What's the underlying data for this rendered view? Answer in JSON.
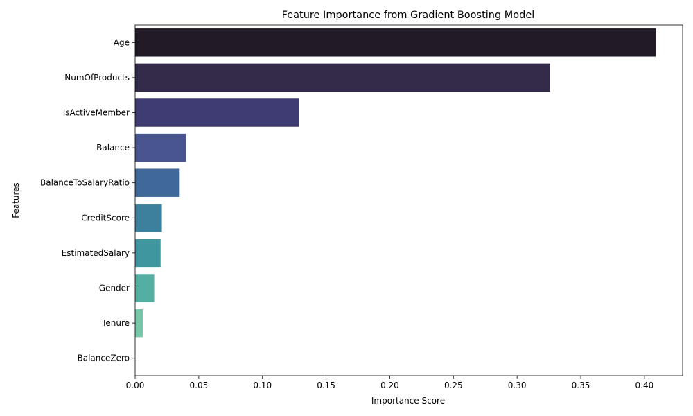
{
  "chart_data": {
    "type": "bar",
    "orientation": "horizontal",
    "title": "Feature Importance from Gradient Boosting Model",
    "xlabel": "Importance Score",
    "ylabel": "Features",
    "categories": [
      "Age",
      "NumOfProducts",
      "IsActiveMember",
      "Balance",
      "BalanceToSalaryRatio",
      "CreditScore",
      "EstimatedSalary",
      "Gender",
      "Tenure",
      "BalanceZero"
    ],
    "values": [
      0.409,
      0.326,
      0.129,
      0.04,
      0.035,
      0.021,
      0.02,
      0.015,
      0.006,
      0.0
    ],
    "colors": [
      "#231a28",
      "#342a4a",
      "#3f3b73",
      "#485590",
      "#40699a",
      "#3c809d",
      "#40969e",
      "#52afa2",
      "#74c8a8",
      "#c0e9ba"
    ],
    "xlim": [
      0,
      0.43
    ],
    "xticks": [
      "0.00",
      "0.05",
      "0.10",
      "0.15",
      "0.20",
      "0.25",
      "0.30",
      "0.35",
      "0.40"
    ],
    "grid": false,
    "legend": "none"
  }
}
